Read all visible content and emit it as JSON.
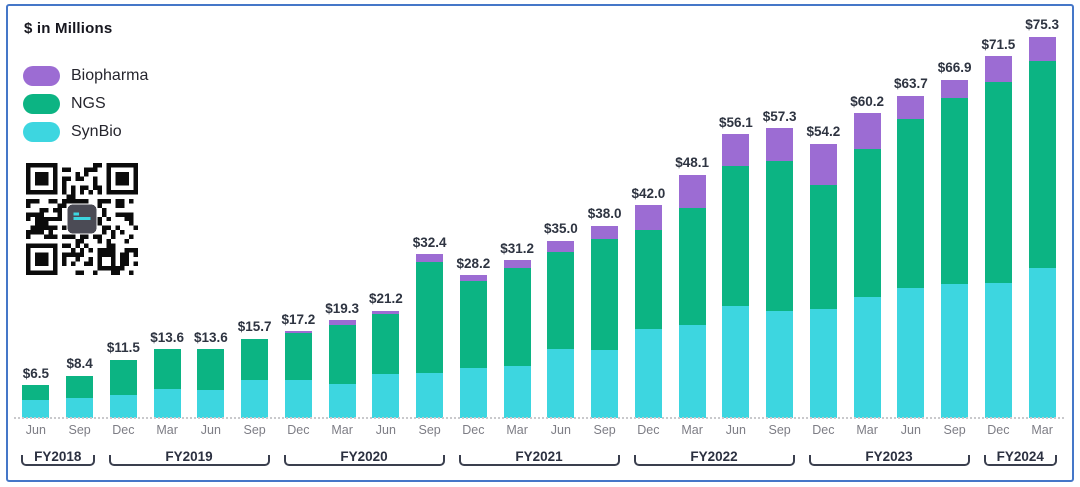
{
  "title": "$ in Millions",
  "legend": [
    {
      "label": "Biopharma",
      "color": "#9C6CD3"
    },
    {
      "label": "NGS",
      "color": "#0CB483"
    },
    {
      "label": "SynBio",
      "color": "#3DD6E0"
    }
  ],
  "colors": {
    "border": "#4577C8",
    "value_label": "#2E3441",
    "month_label": "#7D7D85",
    "fy_label": "#2B3040",
    "bracket": "#3A3F4E",
    "baseline": "#C9C9CC",
    "qr_dark": "#0B0B0B",
    "qr_logo_bg": "#4B4B55",
    "qr_logo_accent": "#3DD6E0"
  },
  "chart_data": {
    "type": "bar",
    "stacked": true,
    "title": "$ in Millions",
    "unit": "USD millions",
    "value_label_prefix": "$",
    "legend_position": "top-left",
    "grid": false,
    "ylim": [
      0,
      80
    ],
    "categories": [
      "Jun",
      "Sep",
      "Dec",
      "Mar",
      "Jun",
      "Sep",
      "Dec",
      "Mar",
      "Jun",
      "Sep",
      "Dec",
      "Mar",
      "Jun",
      "Sep",
      "Dec",
      "Mar",
      "Jun",
      "Sep",
      "Dec",
      "Mar",
      "Jun",
      "Sep",
      "Dec",
      "Mar"
    ],
    "series": [
      {
        "name": "SynBio",
        "color": "#3DD6E0",
        "values": [
          3.5,
          4.0,
          4.6,
          5.8,
          5.5,
          7.5,
          7.5,
          6.8,
          8.8,
          8.9,
          9.9,
          10.3,
          13.7,
          13.5,
          17.6,
          18.3,
          22.1,
          21.1,
          21.6,
          23.9,
          25.7,
          26.4,
          26.7,
          29.6
        ]
      },
      {
        "name": "NGS",
        "color": "#0CB483",
        "values": [
          3.0,
          4.4,
          6.9,
          7.8,
          8.1,
          8.2,
          9.4,
          11.6,
          11.8,
          21.9,
          17.2,
          19.3,
          19.2,
          21.9,
          19.6,
          23.2,
          27.8,
          29.6,
          24.4,
          29.2,
          33.5,
          36.9,
          39.7,
          40.9
        ]
      },
      {
        "name": "Biopharma",
        "color": "#9C6CD3",
        "values": [
          0,
          0,
          0,
          0,
          0,
          0,
          0.3,
          0.9,
          0.6,
          1.6,
          1.1,
          1.6,
          2.1,
          2.6,
          4.8,
          6.6,
          6.2,
          6.6,
          8.2,
          7.1,
          4.5,
          3.6,
          5.1,
          4.8
        ]
      }
    ],
    "totals": [
      6.5,
      8.4,
      11.5,
      13.6,
      13.6,
      15.7,
      17.2,
      19.3,
      21.2,
      32.4,
      28.2,
      31.2,
      35.0,
      38.0,
      42.0,
      48.1,
      56.1,
      57.3,
      54.2,
      60.2,
      63.7,
      66.9,
      71.5,
      75.3
    ],
    "fiscal_years": [
      {
        "label": "FY2018",
        "quarters": 2
      },
      {
        "label": "FY2019",
        "quarters": 4
      },
      {
        "label": "FY2020",
        "quarters": 4
      },
      {
        "label": "FY2021",
        "quarters": 4
      },
      {
        "label": "FY2022",
        "quarters": 4
      },
      {
        "label": "FY2023",
        "quarters": 4
      },
      {
        "label": "FY2024",
        "quarters": 2
      }
    ]
  }
}
